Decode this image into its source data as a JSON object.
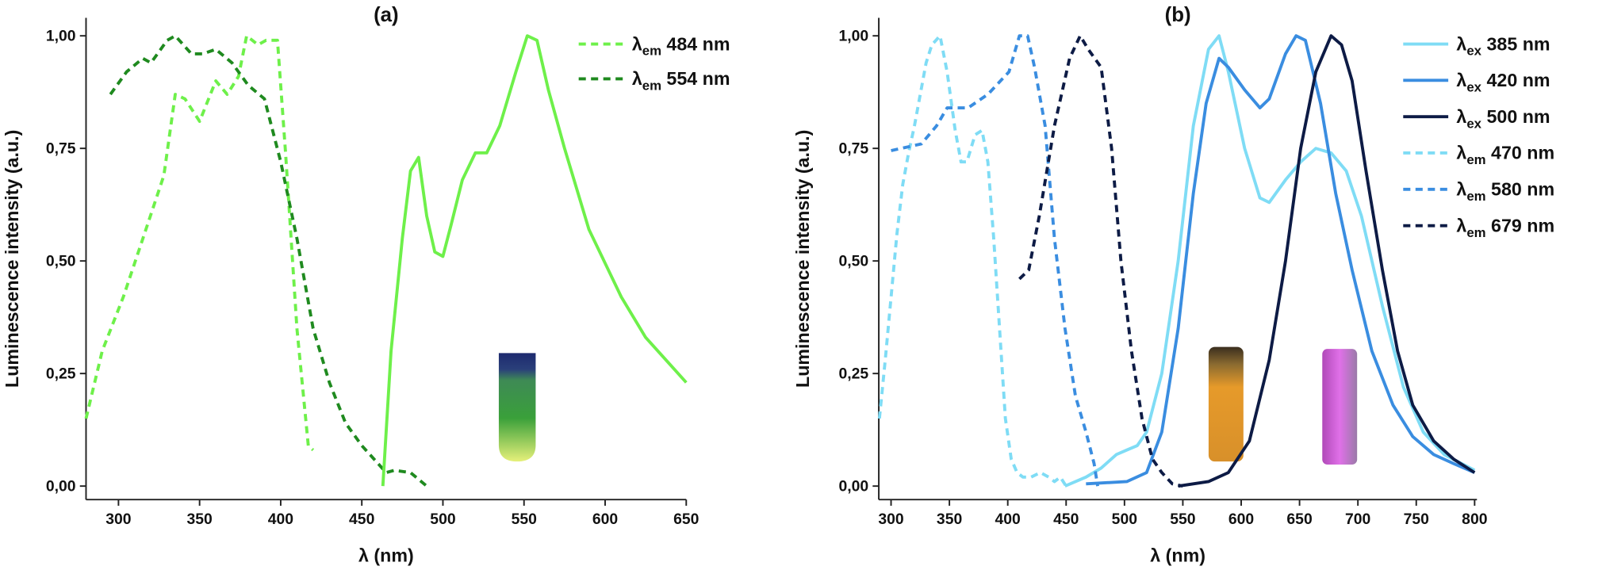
{
  "chart_data": [
    {
      "type": "line",
      "title": "(a)",
      "xlabel": "λ (nm)",
      "ylabel": "Luminescence intensity (a.u.)",
      "xlim": [
        280,
        650
      ],
      "ylim": [
        -0.03,
        1.04
      ],
      "xticks": [
        300,
        350,
        400,
        450,
        500,
        550,
        600,
        650
      ],
      "yticks": [
        {
          "value": 0,
          "label": "0,00"
        },
        {
          "value": 0.25,
          "label": "0,25"
        },
        {
          "value": 0.5,
          "label": "0,50"
        },
        {
          "value": 0.75,
          "label": "0,75"
        },
        {
          "value": 1,
          "label": "1,00"
        }
      ],
      "legend": "upper right",
      "series": [
        {
          "name": "λem 484 nm",
          "color": "#6ef04a",
          "dash": true,
          "x": [
            280,
            290,
            303,
            316,
            328,
            335,
            341,
            350,
            360,
            367,
            374,
            379,
            386,
            391,
            398,
            403,
            410,
            417,
            420
          ],
          "values": [
            0.15,
            0.3,
            0.42,
            0.56,
            0.69,
            0.87,
            0.86,
            0.81,
            0.9,
            0.87,
            0.91,
            1.0,
            0.98,
            0.99,
            0.99,
            0.74,
            0.35,
            0.09,
            0.08
          ]
        },
        {
          "name": "λem 554 nm",
          "color": "#1f8a1f",
          "dash": true,
          "x": [
            295,
            305,
            315,
            320,
            330,
            335,
            340,
            345,
            352,
            360,
            370,
            380,
            390,
            400,
            410,
            420,
            430,
            440,
            450,
            460,
            465,
            470,
            480,
            490
          ],
          "values": [
            0.87,
            0.92,
            0.95,
            0.94,
            0.99,
            1.0,
            0.98,
            0.96,
            0.96,
            0.97,
            0.94,
            0.89,
            0.86,
            0.72,
            0.55,
            0.35,
            0.23,
            0.14,
            0.09,
            0.05,
            0.03,
            0.035,
            0.03,
            0.0
          ]
        },
        {
          "color": "#6ef04a",
          "dash": false,
          "x": [
            463,
            468,
            475,
            480,
            485,
            490,
            495,
            500,
            505,
            512,
            520,
            527,
            535,
            545,
            552,
            558,
            565,
            575,
            590,
            610,
            625,
            640,
            650
          ],
          "values": [
            0,
            0.3,
            0.55,
            0.7,
            0.73,
            0.6,
            0.52,
            0.51,
            0.58,
            0.68,
            0.74,
            0.74,
            0.8,
            0.92,
            1.0,
            0.99,
            0.88,
            0.75,
            0.57,
            0.42,
            0.33,
            0.27,
            0.23
          ]
        }
      ]
    },
    {
      "type": "line",
      "title": "(b)",
      "xlabel": "λ (nm)",
      "ylabel": "Luminescence intensity (a.u.)",
      "xlim": [
        289.5,
        802
      ],
      "ylim": [
        -0.03,
        1.04
      ],
      "xticks": [
        300,
        350,
        400,
        450,
        500,
        550,
        600,
        650,
        700,
        750,
        800
      ],
      "yticks": [
        {
          "value": 0,
          "label": "0,00"
        },
        {
          "value": 0.25,
          "label": "0,25"
        },
        {
          "value": 0.5,
          "label": "0,50"
        },
        {
          "value": 0.75,
          "label": "0,75"
        },
        {
          "value": 1,
          "label": "1,00"
        }
      ],
      "legend": "upper right",
      "series": [
        {
          "name": "λex 385 nm",
          "color": "#7fdcf5",
          "dash": false,
          "x": [
            449,
            467,
            480,
            493,
            502,
            511,
            519,
            532,
            546,
            559,
            572,
            581,
            589,
            603,
            616,
            624,
            638,
            651,
            664,
            677,
            690,
            703,
            721,
            739,
            756,
            774,
            800
          ],
          "values": [
            0.0,
            0.02,
            0.04,
            0.07,
            0.08,
            0.09,
            0.12,
            0.25,
            0.5,
            0.8,
            0.97,
            1.0,
            0.92,
            0.75,
            0.64,
            0.63,
            0.68,
            0.72,
            0.75,
            0.74,
            0.7,
            0.6,
            0.4,
            0.22,
            0.12,
            0.07,
            0.035
          ]
        },
        {
          "name": "λex 420 nm",
          "color": "#3a8de0",
          "dash": false,
          "x": [
            467,
            502,
            519,
            532,
            546,
            559,
            570,
            581,
            589,
            603,
            616,
            624,
            638,
            647,
            655,
            668,
            681,
            695,
            712,
            730,
            747,
            765,
            782,
            800
          ],
          "values": [
            0.005,
            0.01,
            0.03,
            0.12,
            0.35,
            0.65,
            0.85,
            0.95,
            0.93,
            0.88,
            0.84,
            0.86,
            0.96,
            1.0,
            0.99,
            0.85,
            0.65,
            0.48,
            0.3,
            0.18,
            0.11,
            0.07,
            0.05,
            0.03
          ]
        },
        {
          "name": "λex 500 nm",
          "color": "#0d1b45",
          "dash": false,
          "x": [
            546,
            572,
            589,
            607,
            624,
            638,
            651,
            664,
            677,
            686,
            695,
            707,
            721,
            734,
            747,
            765,
            782,
            800
          ],
          "values": [
            0.0,
            0.01,
            0.03,
            0.1,
            0.28,
            0.5,
            0.75,
            0.92,
            1.0,
            0.98,
            0.9,
            0.7,
            0.48,
            0.3,
            0.18,
            0.1,
            0.06,
            0.03
          ]
        },
        {
          "name": "λem 470 nm",
          "color": "#7fdcf5",
          "dash": true,
          "x": [
            290,
            295,
            300,
            305,
            310,
            315,
            320,
            325,
            330,
            335,
            342,
            348,
            355,
            360,
            365,
            372,
            378,
            383,
            388,
            393,
            398,
            403,
            408,
            413,
            420,
            428,
            435,
            440,
            445,
            450
          ],
          "values": [
            0.15,
            0.28,
            0.42,
            0.56,
            0.67,
            0.74,
            0.8,
            0.87,
            0.94,
            0.98,
            1.0,
            0.92,
            0.79,
            0.72,
            0.72,
            0.78,
            0.79,
            0.72,
            0.55,
            0.35,
            0.15,
            0.06,
            0.03,
            0.02,
            0.02,
            0.03,
            0.02,
            0.01,
            0.02,
            0.0
          ]
        },
        {
          "name": "λem 580 nm",
          "color": "#3a8de0",
          "dash": true,
          "x": [
            300,
            326,
            339,
            348,
            366,
            383,
            401,
            410,
            417,
            423,
            432,
            440,
            449,
            458,
            467,
            474,
            477
          ],
          "values": [
            0.745,
            0.76,
            0.8,
            0.84,
            0.84,
            0.87,
            0.92,
            1.0,
            1.0,
            0.93,
            0.8,
            0.55,
            0.35,
            0.2,
            0.12,
            0.05,
            0.0
          ]
        },
        {
          "name": "λem 679 nm",
          "color": "#0d1b45",
          "dash": true,
          "x": [
            410,
            418,
            427,
            440,
            453,
            462,
            469,
            480,
            489,
            497,
            506,
            515,
            524,
            532,
            541,
            550
          ],
          "values": [
            0.46,
            0.48,
            0.6,
            0.8,
            0.95,
            1.0,
            0.97,
            0.93,
            0.75,
            0.5,
            0.3,
            0.15,
            0.06,
            0.03,
            0.005,
            0.0
          ]
        }
      ]
    }
  ]
}
